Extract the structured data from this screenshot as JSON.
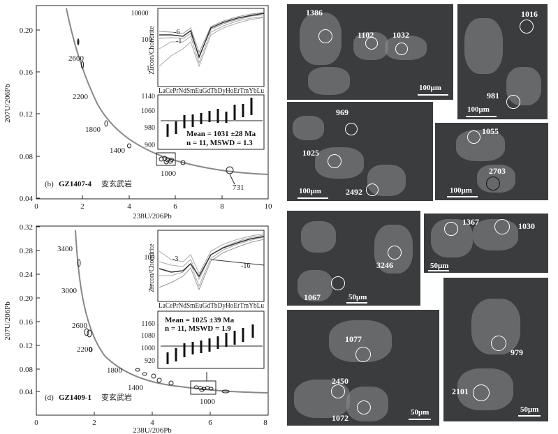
{
  "plots": [
    {
      "id": "b",
      "panel_label": "(b)",
      "sample": "GZ1407-4",
      "rock": "变玄武岩",
      "xlabel": "238U/206Pb",
      "ylabel": "207U/206Pb",
      "xticks": [
        "0",
        "2",
        "4",
        "6",
        "8",
        "10"
      ],
      "yticks": [
        "0.04",
        "0.08",
        "0.12",
        "0.16",
        "0.20"
      ],
      "concordia_ages": [
        "2600",
        "2200",
        "1800",
        "1400",
        "1000"
      ],
      "annotation_age": "731",
      "ree": {
        "ylabel": "Zircon/Chondrite",
        "yticks": [
          "10000",
          "100",
          "1"
        ],
        "elements": "LaCePrNdSmEuGdTbDyHoErTmYbLu",
        "labels": [
          "-6",
          "-1"
        ]
      },
      "wmean": {
        "yticks": [
          "1140",
          "1060",
          "980",
          "900"
        ],
        "mean": "Mean = 1031 ±28 Ma",
        "stats": "n = 11, MSWD = 1.3"
      }
    },
    {
      "id": "d",
      "panel_label": "(d)",
      "sample": "GZ1409-1",
      "rock": "变玄武岩",
      "xlabel": "238U/206Pb",
      "ylabel": "207U/206Pb",
      "xticks": [
        "0",
        "2",
        "4",
        "6",
        "8"
      ],
      "yticks": [
        "0.04",
        "0.08",
        "0.12",
        "0.16",
        "0.20",
        "0.24",
        "0.28",
        "0.32"
      ],
      "concordia_ages": [
        "3400",
        "3000",
        "2600",
        "2200",
        "1800",
        "1400",
        "1000"
      ],
      "ree": {
        "ylabel": "Zircon/Chondrite",
        "yticks": [
          "100",
          "1"
        ],
        "elements": "LaCePrNdSmEuGdTbDyHoErTmYbLu",
        "labels": [
          "-3",
          "-16"
        ]
      },
      "wmean": {
        "yticks": [
          "1160",
          "1080",
          "1000",
          "920"
        ],
        "mean": "Mean = 1025 ±39 Ma",
        "stats": "n = 11, MSWD = 1.9"
      }
    }
  ],
  "images": {
    "img1": {
      "labels": [
        "1386",
        "1102",
        "1032"
      ],
      "scale": "100μm"
    },
    "img2": {
      "labels": [
        "1016",
        "981"
      ],
      "scale": "100μm"
    },
    "img3": {
      "labels": [
        "969",
        "1025",
        "2492"
      ],
      "scale": "100μm"
    },
    "img4": {
      "labels": [
        "1055",
        "2703"
      ],
      "scale": "100μm"
    },
    "img5": {
      "labels": [
        "3246",
        "1067"
      ],
      "scale": "50μm"
    },
    "img6": {
      "labels": [
        "1367",
        "1030"
      ],
      "scale": "50μm"
    },
    "img7": {
      "labels": [
        "1077",
        "2450",
        "1072"
      ],
      "scale": "50μm"
    },
    "img8": {
      "labels": [
        "979",
        "2101"
      ],
      "scale": "50μm"
    }
  }
}
